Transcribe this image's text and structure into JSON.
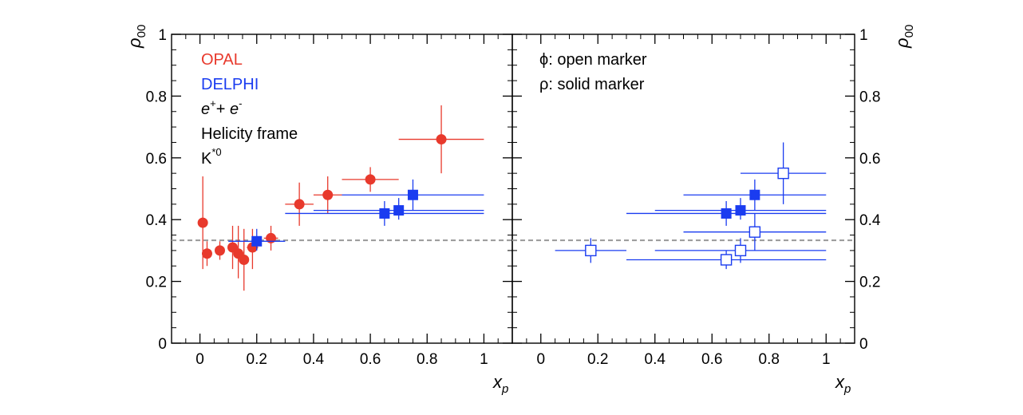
{
  "chart_data": [
    {
      "type": "scatter",
      "panel": "left",
      "xlabel": "x",
      "xlabel_sub": "p",
      "ylabel": "ρ",
      "ylabel_sub": "00",
      "xlim": [
        -0.1,
        1.1
      ],
      "ylim": [
        0,
        1
      ],
      "xticks": [
        0,
        0.2,
        0.4,
        0.6,
        0.8,
        1
      ],
      "xtick_labels": [
        "0",
        "0.2",
        "0.4",
        "0.6",
        "0.8",
        "1"
      ],
      "yticks": [
        0,
        0.2,
        0.4,
        0.6,
        0.8,
        1
      ],
      "ytick_labels": [
        "0",
        "0.2",
        "0.4",
        "0.6",
        "0.8",
        "1"
      ],
      "reference_line": 0.333,
      "legend": {
        "opal": "OPAL",
        "delphi": "DELPHI",
        "ee_e1": "e",
        "ee_sup1": "+",
        "ee_plus": "+ ",
        "ee_e2": "e",
        "ee_sup2": "-",
        "frame": "Helicity frame",
        "particle": "K",
        "particle_sup": "*0"
      },
      "series": [
        {
          "name": "OPAL",
          "color": "#e8392c",
          "marker": "circle-filled",
          "points": [
            {
              "x": 0.01,
              "y": 0.39,
              "xerr": 0,
              "ylo": 0.24,
              "yhi": 0.54
            },
            {
              "x": 0.025,
              "y": 0.29,
              "xerr": 0.01,
              "ylo": 0.25,
              "yhi": 0.33
            },
            {
              "x": 0.07,
              "y": 0.3,
              "xerr": 0.015,
              "ylo": 0.27,
              "yhi": 0.33
            },
            {
              "x": 0.115,
              "y": 0.31,
              "xerr": 0.015,
              "ylo": 0.24,
              "yhi": 0.38
            },
            {
              "x": 0.135,
              "y": 0.29,
              "xerr": 0.015,
              "ylo": 0.21,
              "yhi": 0.38
            },
            {
              "x": 0.155,
              "y": 0.27,
              "xerr": 0.015,
              "ylo": 0.17,
              "yhi": 0.37
            },
            {
              "x": 0.185,
              "y": 0.31,
              "xerr": 0.02,
              "ylo": 0.24,
              "yhi": 0.37
            },
            {
              "x": 0.25,
              "y": 0.34,
              "xerr": 0.025,
              "ylo": 0.3,
              "yhi": 0.38
            },
            {
              "x": 0.35,
              "y": 0.45,
              "xerr": 0.05,
              "ylo": 0.38,
              "yhi": 0.52
            },
            {
              "x": 0.45,
              "y": 0.48,
              "xerr": 0.05,
              "ylo": 0.42,
              "yhi": 0.54
            },
            {
              "x": 0.6,
              "y": 0.53,
              "xerr": 0.1,
              "ylo": 0.49,
              "yhi": 0.57
            },
            {
              "x": 0.85,
              "y": 0.66,
              "xerr": 0.15,
              "ylo": 0.55,
              "yhi": 0.77
            }
          ]
        },
        {
          "name": "DELPHI",
          "color": "#1a3cf0",
          "marker": "square-filled",
          "points": [
            {
              "x": 0.2,
              "y": 0.33,
              "xerr": 0.1,
              "ylo": 0.3,
              "yhi": 0.37
            },
            {
              "x": 0.65,
              "y": 0.42,
              "xerr": 0.35,
              "ylo": 0.38,
              "yhi": 0.46
            },
            {
              "x": 0.7,
              "y": 0.43,
              "xerr": 0.3,
              "ylo": 0.4,
              "yhi": 0.47
            },
            {
              "x": 0.75,
              "y": 0.48,
              "xerr": 0.25,
              "ylo": 0.43,
              "yhi": 0.53
            }
          ]
        }
      ]
    },
    {
      "type": "scatter",
      "panel": "right",
      "xlabel": "x",
      "xlabel_sub": "p",
      "ylabel": "ρ",
      "ylabel_sub": "00",
      "xlim": [
        -0.1,
        1.1
      ],
      "ylim": [
        0,
        1
      ],
      "xticks": [
        0,
        0.2,
        0.4,
        0.6,
        0.8,
        1
      ],
      "xtick_labels": [
        "0",
        "0.2",
        "0.4",
        "0.6",
        "0.8",
        "1"
      ],
      "yticks": [
        0,
        0.2,
        0.4,
        0.6,
        0.8,
        1
      ],
      "ytick_labels": [
        "0",
        "0.2",
        "0.4",
        "0.6",
        "0.8",
        "1"
      ],
      "reference_line": 0.333,
      "legend": {
        "phi": "ϕ: open marker",
        "rho": "ρ: solid marker"
      },
      "series": [
        {
          "name": "ϕ",
          "color": "#1a3cf0",
          "marker": "square-open",
          "points": [
            {
              "x": 0.175,
              "y": 0.3,
              "xerr": 0.125,
              "ylo": 0.26,
              "yhi": 0.34
            },
            {
              "x": 0.65,
              "y": 0.27,
              "xerr": 0.35,
              "ylo": 0.24,
              "yhi": 0.3
            },
            {
              "x": 0.7,
              "y": 0.3,
              "xerr": 0.3,
              "ylo": 0.26,
              "yhi": 0.34
            },
            {
              "x": 0.75,
              "y": 0.36,
              "xerr": 0.25,
              "ylo": 0.3,
              "yhi": 0.42
            },
            {
              "x": 0.85,
              "y": 0.55,
              "xerr": 0.15,
              "ylo": 0.45,
              "yhi": 0.65
            }
          ]
        },
        {
          "name": "ρ",
          "color": "#1a3cf0",
          "marker": "square-filled",
          "points": [
            {
              "x": 0.65,
              "y": 0.42,
              "xerr": 0.35,
              "ylo": 0.38,
              "yhi": 0.46
            },
            {
              "x": 0.7,
              "y": 0.43,
              "xerr": 0.3,
              "ylo": 0.4,
              "yhi": 0.47
            },
            {
              "x": 0.75,
              "y": 0.48,
              "xerr": 0.25,
              "ylo": 0.43,
              "yhi": 0.53
            }
          ]
        }
      ]
    }
  ]
}
